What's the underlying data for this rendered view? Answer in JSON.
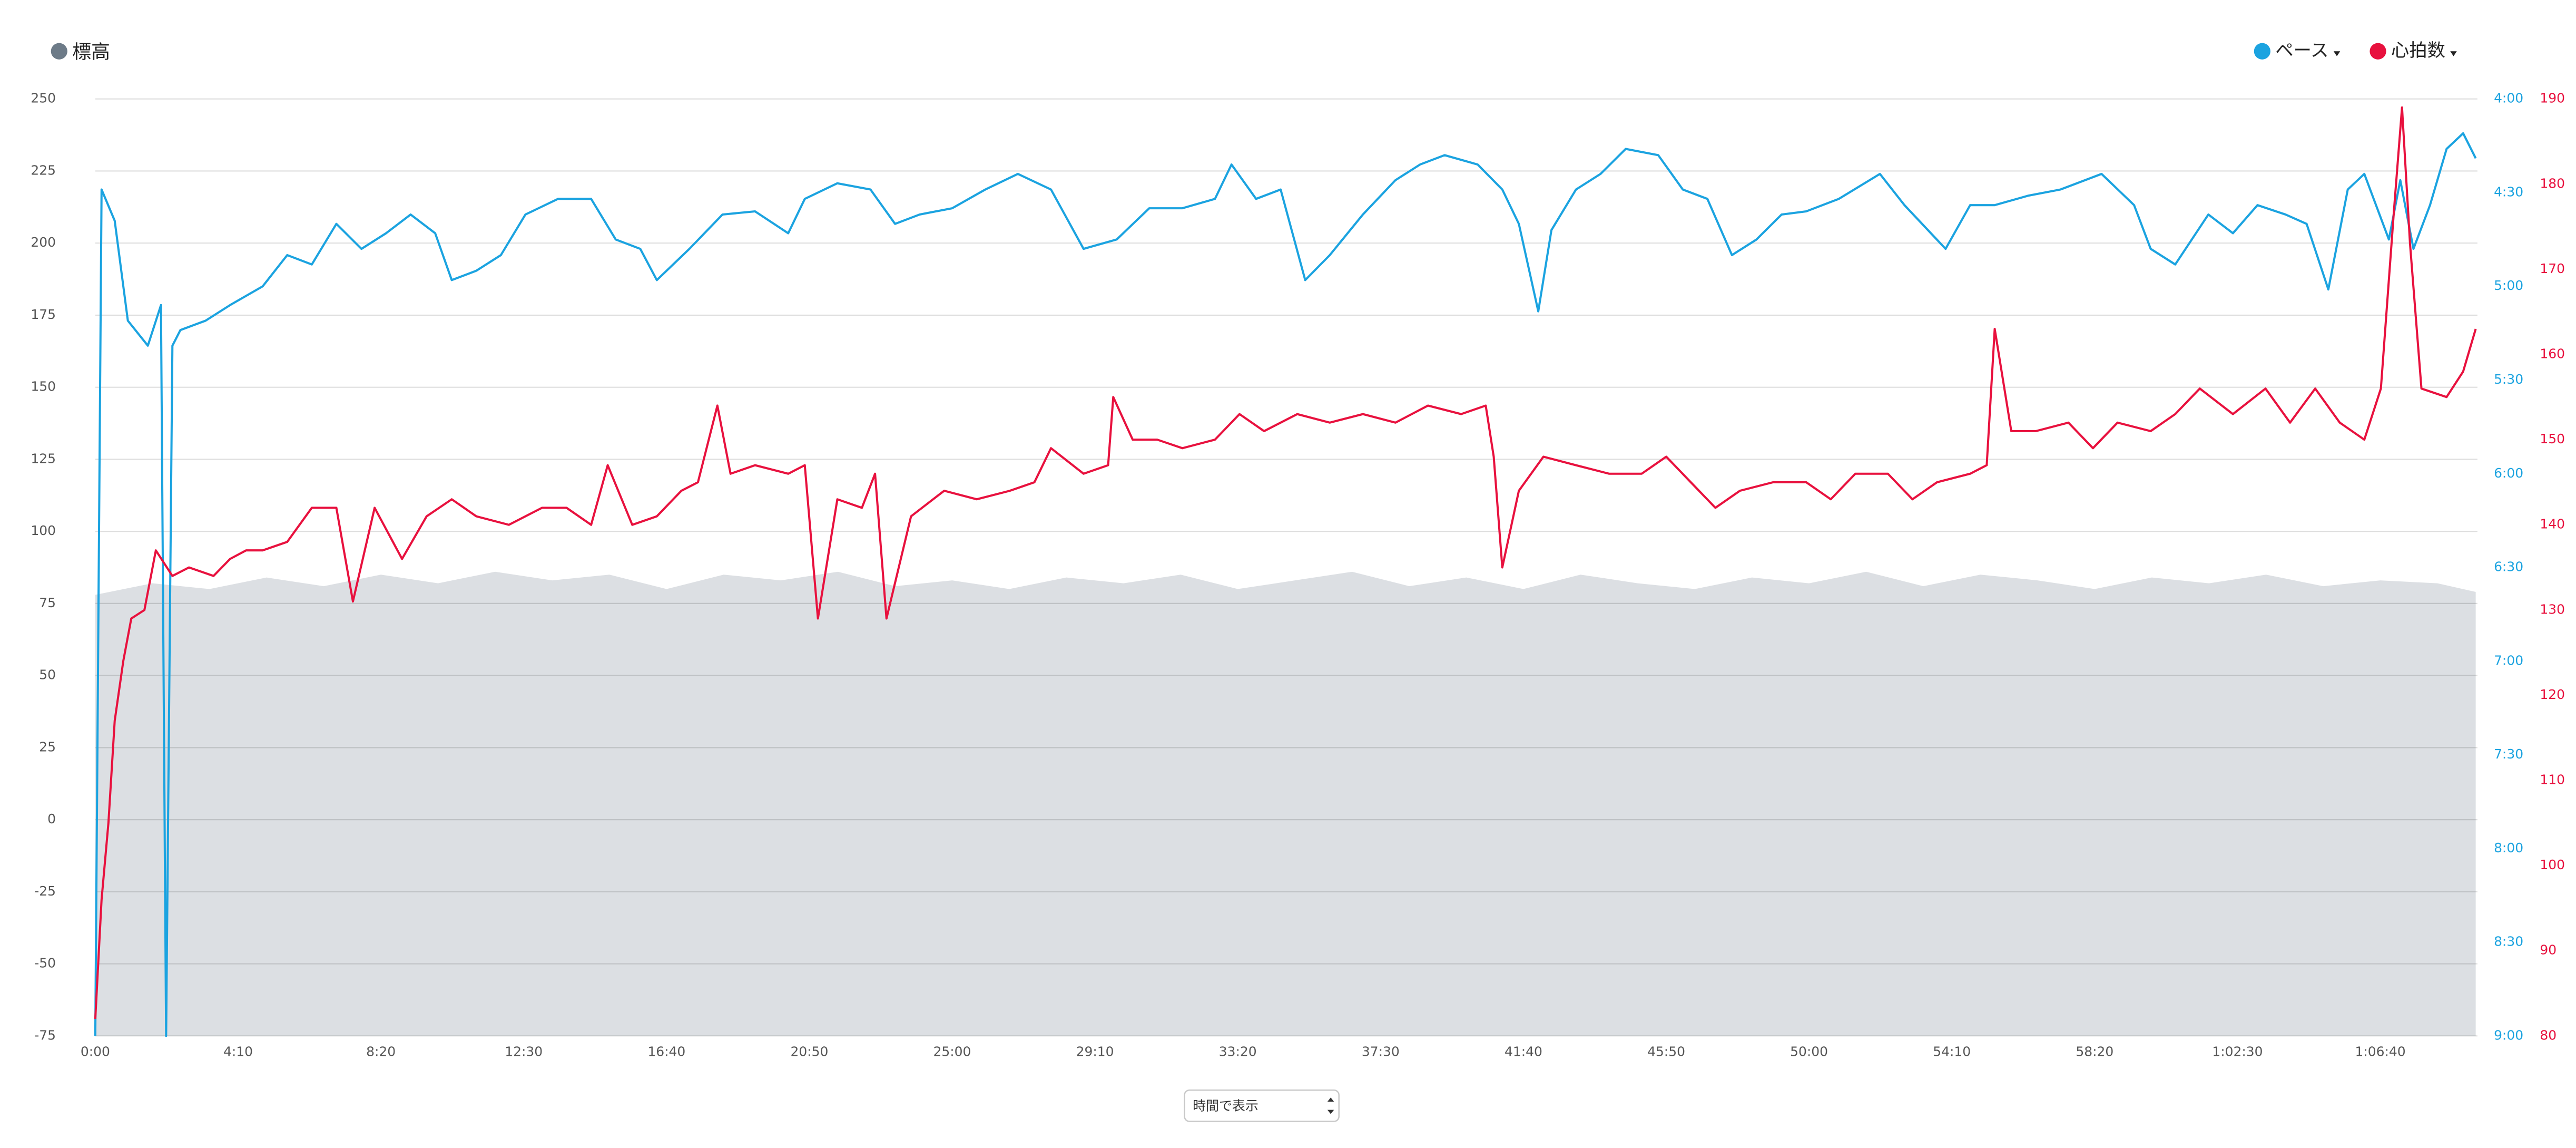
{
  "chart_data": {
    "type": "line",
    "xlim": [
      0,
      4170
    ],
    "xticks": [
      {
        "value": 0,
        "label": "0:00"
      },
      {
        "value": 250,
        "label": "4:10"
      },
      {
        "value": 500,
        "label": "8:20"
      },
      {
        "value": 750,
        "label": "12:30"
      },
      {
        "value": 1000,
        "label": "16:40"
      },
      {
        "value": 1250,
        "label": "20:50"
      },
      {
        "value": 1500,
        "label": "25:00"
      },
      {
        "value": 1750,
        "label": "29:10"
      },
      {
        "value": 2000,
        "label": "33:20"
      },
      {
        "value": 2250,
        "label": "37:30"
      },
      {
        "value": 2500,
        "label": "41:40"
      },
      {
        "value": 2750,
        "label": "45:50"
      },
      {
        "value": 3000,
        "label": "50:00"
      },
      {
        "value": 3250,
        "label": "54:10"
      },
      {
        "value": 3500,
        "label": "58:20"
      },
      {
        "value": 3750,
        "label": "1:02:30"
      },
      {
        "value": 4000,
        "label": "1:06:40"
      }
    ],
    "ylim": [
      -75,
      250
    ],
    "yticks": [
      -75,
      -50,
      -25,
      0,
      25,
      50,
      75,
      100,
      125,
      150,
      175,
      200,
      225,
      250
    ],
    "y2lim": [
      540,
      240
    ],
    "y2ticks": [
      {
        "value": 540,
        "label": "9:00"
      },
      {
        "value": 510,
        "label": "8:30"
      },
      {
        "value": 480,
        "label": "8:00"
      },
      {
        "value": 450,
        "label": "7:30"
      },
      {
        "value": 420,
        "label": "7:00"
      },
      {
        "value": 390,
        "label": "6:30"
      },
      {
        "value": 360,
        "label": "6:00"
      },
      {
        "value": 330,
        "label": "5:30"
      },
      {
        "value": 300,
        "label": "5:00"
      },
      {
        "value": 270,
        "label": "4:30"
      },
      {
        "value": 240,
        "label": "4:00"
      }
    ],
    "y3lim": [
      80,
      190
    ],
    "y3ticks": [
      80,
      90,
      100,
      110,
      120,
      130,
      140,
      150,
      160,
      170,
      180,
      190
    ],
    "grid": true,
    "series": [
      {
        "name": "標高",
        "color": "#6d7b88",
        "fill": "#dcdfe3",
        "axis": "y",
        "style": "area",
        "x": [
          0,
          100,
          200,
          300,
          400,
          500,
          600,
          700,
          800,
          900,
          1000,
          1100,
          1200,
          1300,
          1400,
          1500,
          1600,
          1700,
          1800,
          1900,
          2000,
          2100,
          2200,
          2300,
          2400,
          2500,
          2600,
          2700,
          2800,
          2900,
          3000,
          3100,
          3200,
          3300,
          3400,
          3500,
          3600,
          3700,
          3800,
          3900,
          4000,
          4100,
          4167
        ],
        "values": [
          78,
          82,
          80,
          84,
          81,
          85,
          82,
          86,
          83,
          85,
          80,
          85,
          83,
          86,
          81,
          83,
          80,
          84,
          82,
          85,
          80,
          83,
          86,
          81,
          84,
          80,
          85,
          82,
          80,
          84,
          82,
          86,
          81,
          85,
          83,
          80,
          84,
          82,
          85,
          81,
          83,
          82,
          79
        ]
      },
      {
        "name": "ペース",
        "color": "#1ba3e0",
        "axis": "y2",
        "style": "line",
        "x": [
          0,
          11,
          34,
          57,
          92,
          115,
          124,
          135,
          149,
          193,
          236,
          293,
          336,
          379,
          422,
          466,
          509,
          552,
          595,
          624,
          667,
          710,
          753,
          810,
          868,
          911,
          954,
          983,
          1040,
          1098,
          1155,
          1213,
          1242,
          1299,
          1357,
          1400,
          1443,
          1500,
          1558,
          1615,
          1673,
          1730,
          1788,
          1845,
          1903,
          1960,
          1989,
          2032,
          2075,
          2118,
          2161,
          2219,
          2276,
          2319,
          2362,
          2420,
          2463,
          2492,
          2526,
          2549,
          2592,
          2635,
          2679,
          2736,
          2779,
          2822,
          2865,
          2908,
          2952,
          2995,
          3052,
          3124,
          3167,
          3239,
          3282,
          3325,
          3383,
          3440,
          3512,
          3569,
          3598,
          3641,
          3699,
          3742,
          3785,
          3834,
          3871,
          3909,
          3943,
          3972,
          4015,
          4035,
          4058,
          4087,
          4116,
          4145,
          4167
        ],
        "values": [
          540,
          269,
          279,
          311,
          319,
          306,
          540,
          319,
          314,
          311,
          306,
          300,
          290,
          293,
          280,
          288,
          283,
          277,
          283,
          298,
          295,
          290,
          277,
          272,
          272,
          285,
          288,
          298,
          288,
          277,
          276,
          283,
          272,
          267,
          269,
          280,
          277,
          275,
          269,
          264,
          269,
          288,
          285,
          275,
          275,
          272,
          261,
          272,
          269,
          298,
          290,
          277,
          266,
          261,
          258,
          261,
          269,
          280,
          308,
          282,
          269,
          264,
          256,
          258,
          269,
          272,
          290,
          285,
          277,
          276,
          272,
          264,
          274,
          288,
          274,
          274,
          271,
          269,
          264,
          274,
          288,
          293,
          277,
          283,
          274,
          277,
          280,
          301,
          269,
          264,
          285,
          266,
          288,
          274,
          256,
          251,
          259
        ]
      },
      {
        "name": "心拍数",
        "color": "#e8113e",
        "axis": "y3",
        "style": "line",
        "x": [
          0,
          11,
          23,
          34,
          49,
          63,
          86,
          106,
          135,
          164,
          207,
          236,
          264,
          293,
          336,
          379,
          422,
          451,
          489,
          537,
          580,
          624,
          667,
          724,
          782,
          825,
          868,
          897,
          940,
          983,
          1026,
          1055,
          1089,
          1112,
          1155,
          1213,
          1242,
          1265,
          1299,
          1342,
          1365,
          1385,
          1428,
          1486,
          1543,
          1601,
          1644,
          1673,
          1730,
          1773,
          1782,
          1816,
          1859,
          1903,
          1960,
          2003,
          2046,
          2104,
          2161,
          2219,
          2276,
          2333,
          2391,
          2434,
          2448,
          2463,
          2492,
          2535,
          2592,
          2650,
          2707,
          2750,
          2793,
          2836,
          2879,
          2937,
          2995,
          3038,
          3081,
          3138,
          3181,
          3224,
          3282,
          3311,
          3325,
          3354,
          3397,
          3454,
          3497,
          3540,
          3598,
          3641,
          3684,
          3742,
          3799,
          3842,
          3886,
          3929,
          3972,
          4001,
          4024,
          4038,
          4052,
          4072,
          4116,
          4145,
          4167
        ],
        "values": [
          82,
          96,
          105,
          117,
          124,
          129,
          130,
          137,
          134,
          135,
          134,
          136,
          137,
          137,
          138,
          142,
          142,
          131,
          142,
          136,
          141,
          143,
          141,
          140,
          142,
          142,
          140,
          147,
          140,
          141,
          144,
          145,
          154,
          146,
          147,
          146,
          147,
          129,
          143,
          142,
          146,
          129,
          141,
          144,
          143,
          144,
          145,
          149,
          146,
          147,
          155,
          150,
          150,
          149,
          150,
          153,
          151,
          153,
          152,
          153,
          152,
          154,
          153,
          154,
          148,
          135,
          144,
          148,
          147,
          146,
          146,
          148,
          145,
          142,
          144,
          145,
          145,
          143,
          146,
          146,
          143,
          145,
          146,
          147,
          163,
          151,
          151,
          152,
          149,
          152,
          151,
          153,
          156,
          153,
          156,
          152,
          156,
          152,
          150,
          156,
          177,
          189,
          173,
          156,
          155,
          158,
          163
        ]
      }
    ]
  },
  "controls": {
    "view_select": "時間で表示"
  }
}
